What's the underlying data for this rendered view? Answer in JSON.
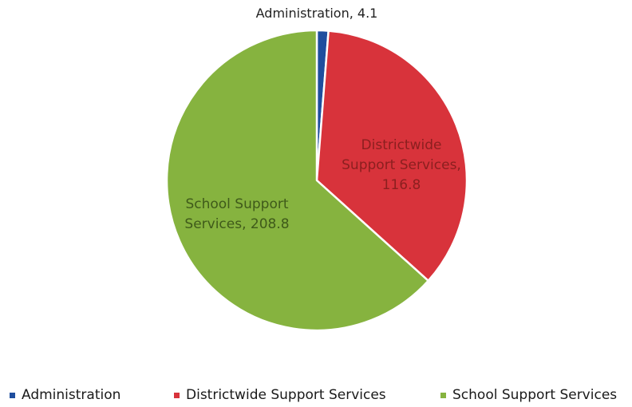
{
  "chart_data": {
    "type": "pie",
    "categories": [
      "Administration",
      "Districtwide Support Services",
      "School Support Services"
    ],
    "values": [
      4.1,
      116.8,
      208.8
    ],
    "slice_labels": [
      [
        "Administration, 4.1"
      ],
      [
        "Districtwide",
        "Support Services,",
        "116.8"
      ],
      [
        "School Support",
        "Services, 208.8"
      ]
    ],
    "colors": [
      "#1f4e9e",
      "#d8333b",
      "#86b33f"
    ],
    "slice_label_colors": [
      "#222222",
      "#8b1f1f",
      "#3f5a1a"
    ],
    "start_angle": "12 o'clock",
    "direction": "clockwise",
    "legend": {
      "placement": "bottom",
      "entries": [
        "Administration",
        "Districtwide Support Services",
        "School Support Services"
      ]
    }
  }
}
